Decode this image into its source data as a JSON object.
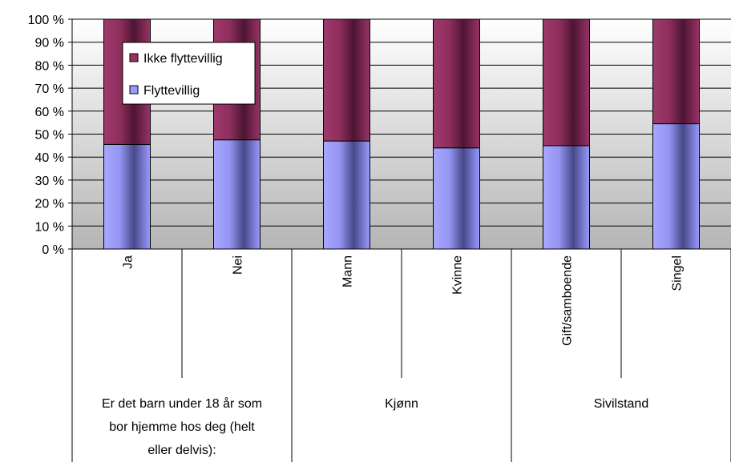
{
  "chart_data": {
    "type": "bar",
    "stacked": true,
    "percent_stacked": true,
    "title": "",
    "xlabel": "",
    "ylabel": "",
    "ylim": [
      0,
      100
    ],
    "y_ticks": [
      "0 %",
      "10 %",
      "20 %",
      "30 %",
      "40 %",
      "50 %",
      "60 %",
      "70 %",
      "80 %",
      "90 %",
      "100 %"
    ],
    "grid": true,
    "legend_position": "top-left",
    "categories": [
      "Ja",
      "Nei",
      "Mann",
      "Kvinne",
      "Gift/samboende",
      "Singel"
    ],
    "groups": [
      {
        "label": "Er det barn under 18 år som bor hjemme hos deg (helt eller delvis):",
        "label_lines": [
          "Er det barn under 18 år som",
          "bor hjemme hos deg (helt",
          "eller delvis):"
        ],
        "categories": [
          "Ja",
          "Nei"
        ]
      },
      {
        "label": "Kjønn",
        "label_lines": [
          "Kjønn"
        ],
        "categories": [
          "Mann",
          "Kvinne"
        ]
      },
      {
        "label": "Sivilstand",
        "label_lines": [
          "Sivilstand"
        ],
        "categories": [
          "Gift/samboende",
          "Singel"
        ]
      }
    ],
    "series": [
      {
        "name": "Flyttevillig",
        "color": "#9999FF",
        "values": [
          45.5,
          47.5,
          47,
          44,
          45,
          54.5
        ]
      },
      {
        "name": "Ikke flyttevillig",
        "color": "#993366",
        "values": [
          54.5,
          52.5,
          53,
          56,
          55,
          45.5
        ]
      }
    ],
    "legend": [
      "Ikke flyttevillig",
      "Flyttevillig"
    ]
  }
}
